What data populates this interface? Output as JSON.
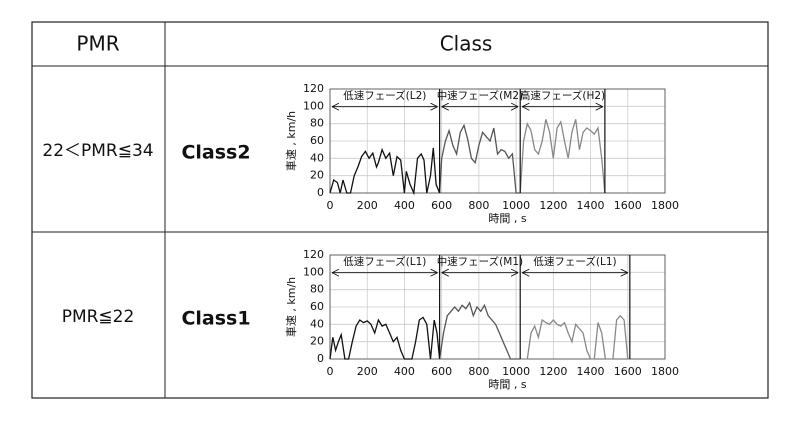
{
  "table": {
    "header": [
      "PMR",
      "Class"
    ],
    "rows": [
      {
        "pmr": "22＜PMR≦34",
        "class": "Class2",
        "chart": {
          "type": "line",
          "xlabel": "時間 , s",
          "ylabel": "車速 , km/h",
          "xlim": [
            0,
            1800
          ],
          "ylim": [
            0,
            120
          ],
          "xticks": [
            0,
            200,
            400,
            600,
            800,
            1000,
            1200,
            1400,
            1600,
            1800
          ],
          "yticks": [
            0,
            20,
            40,
            60,
            80,
            100,
            120
          ],
          "grid": true,
          "phases": [
            {
              "label": "低速フェーズ(L2)",
              "start": 0,
              "end": 589
            },
            {
              "label": "中速フェーズ(M2)",
              "start": 589,
              "end": 1022
            },
            {
              "label": "高速フェーズ(H2)",
              "start": 1022,
              "end": 1477
            }
          ],
          "series": [
            {
              "color": "#111111",
              "x": [
                0,
                20,
                40,
                55,
                70,
                90,
                110,
                130,
                150,
                170,
                190,
                210,
                230,
                250,
                260,
                280,
                300,
                320,
                340,
                360,
                380,
                400,
                410,
                430,
                450,
                470,
                490,
                505,
                520,
                540,
                555,
                570,
                589
              ],
              "values": [
                0,
                15,
                12,
                0,
                15,
                0,
                0,
                20,
                30,
                42,
                48,
                40,
                46,
                30,
                35,
                50,
                40,
                46,
                20,
                42,
                38,
                0,
                25,
                10,
                0,
                40,
                45,
                38,
                0,
                20,
                52,
                10,
                0
              ]
            },
            {
              "color": "#555555",
              "x": [
                589,
                600,
                620,
                640,
                660,
                680,
                700,
                720,
                740,
                760,
                780,
                800,
                820,
                840,
                860,
                880,
                900,
                920,
                940,
                960,
                980,
                1000,
                1010,
                1022
              ],
              "values": [
                0,
                40,
                60,
                72,
                55,
                45,
                70,
                78,
                62,
                40,
                35,
                55,
                70,
                65,
                60,
                75,
                45,
                50,
                48,
                40,
                45,
                0,
                0,
                0
              ]
            },
            {
              "color": "#888888",
              "x": [
                1022,
                1040,
                1060,
                1080,
                1100,
                1120,
                1140,
                1160,
                1180,
                1200,
                1220,
                1240,
                1260,
                1280,
                1300,
                1320,
                1340,
                1360,
                1380,
                1400,
                1420,
                1440,
                1460,
                1477
              ],
              "values": [
                0,
                60,
                80,
                72,
                50,
                45,
                60,
                85,
                70,
                40,
                75,
                82,
                60,
                40,
                70,
                85,
                50,
                70,
                75,
                72,
                68,
                75,
                40,
                0
              ]
            }
          ]
        }
      },
      {
        "pmr": "PMR≦22",
        "class": "Class1",
        "chart": {
          "type": "line",
          "xlabel": "時間 , s",
          "ylabel": "車速 , km/h",
          "xlim": [
            0,
            1800
          ],
          "ylim": [
            0,
            120
          ],
          "xticks": [
            0,
            200,
            400,
            600,
            800,
            1000,
            1200,
            1400,
            1600,
            1800
          ],
          "yticks": [
            0,
            20,
            40,
            60,
            80,
            100,
            120
          ],
          "grid": true,
          "phases": [
            {
              "label": "低速フェーズ(L1)",
              "start": 0,
              "end": 589
            },
            {
              "label": "中速フェーズ(M1)",
              "start": 589,
              "end": 1022
            },
            {
              "label": "低速フェーズ(L1)",
              "start": 1022,
              "end": 1611
            }
          ],
          "series": [
            {
              "color": "#111111",
              "x": [
                0,
                15,
                30,
                45,
                60,
                80,
                100,
                120,
                140,
                160,
                180,
                200,
                220,
                240,
                260,
                280,
                300,
                320,
                340,
                360,
                380,
                400,
                420,
                440,
                460,
                480,
                500,
                520,
                540,
                560,
                575,
                589
              ],
              "values": [
                0,
                25,
                10,
                20,
                28,
                0,
                0,
                20,
                38,
                45,
                42,
                44,
                40,
                30,
                45,
                38,
                40,
                30,
                20,
                25,
                10,
                0,
                0,
                0,
                20,
                45,
                48,
                40,
                0,
                45,
                30,
                0
              ]
            },
            {
              "color": "#555555",
              "x": [
                589,
                610,
                630,
                650,
                670,
                690,
                710,
                730,
                750,
                770,
                790,
                810,
                830,
                850,
                870,
                890,
                910,
                930,
                950,
                970,
                990,
                1000,
                1022
              ],
              "values": [
                0,
                30,
                50,
                55,
                60,
                55,
                62,
                58,
                65,
                50,
                60,
                55,
                62,
                50,
                45,
                40,
                30,
                20,
                10,
                0,
                0,
                0,
                0
              ]
            },
            {
              "color": "#888888",
              "x": [
                1022,
                1060,
                1080,
                1100,
                1120,
                1140,
                1160,
                1180,
                1200,
                1220,
                1240,
                1260,
                1280,
                1300,
                1320,
                1340,
                1360,
                1380,
                1400,
                1420,
                1440,
                1460,
                1480,
                1500,
                1520,
                1540,
                1560,
                1580,
                1600,
                1611
              ],
              "values": [
                0,
                0,
                30,
                38,
                25,
                45,
                42,
                40,
                45,
                40,
                38,
                42,
                30,
                20,
                40,
                35,
                30,
                10,
                0,
                0,
                42,
                30,
                0,
                0,
                0,
                45,
                50,
                45,
                0,
                0
              ]
            }
          ]
        }
      }
    ]
  }
}
